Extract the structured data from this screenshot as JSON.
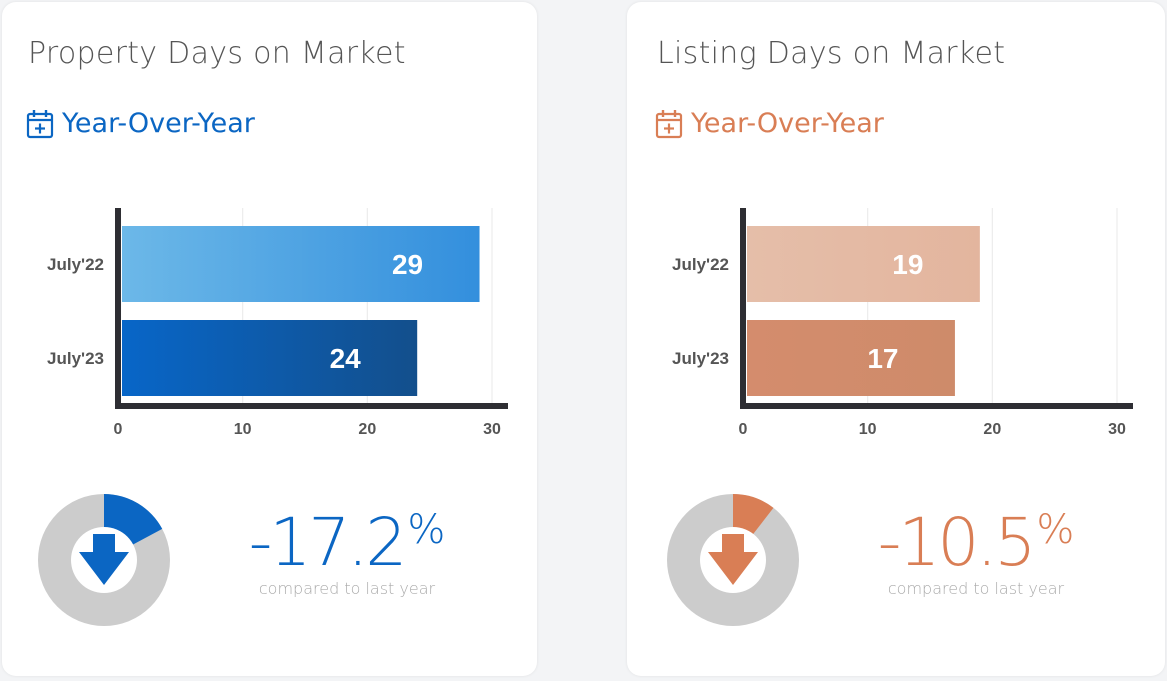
{
  "panels": [
    {
      "title": "Property Days on Market",
      "subtitle": "Year-Over-Year",
      "accent": "#0b66c3",
      "change_value": "-17.2",
      "change_unit": "%",
      "change_caption": "compared to last year",
      "change_fraction": 0.172,
      "icons": [
        "calendar-plus-icon",
        "arrow-down-icon"
      ],
      "bar_colors": [
        {
          "from": "#6cb8e8",
          "to": "#338fdd"
        },
        {
          "from": "#0866c8",
          "to": "#134f8c"
        }
      ]
    },
    {
      "title": "Listing Days on Market",
      "subtitle": "Year-Over-Year",
      "accent": "#d97e55",
      "change_value": "-10.5",
      "change_unit": "%",
      "change_caption": "compared to last year",
      "change_fraction": 0.105,
      "icons": [
        "calendar-plus-icon",
        "arrow-down-icon"
      ],
      "bar_colors": [
        {
          "from": "#e5bea9",
          "to": "#e3b59e"
        },
        {
          "from": "#d48c6d",
          "to": "#ce8b6a"
        }
      ]
    }
  ],
  "chart_data": [
    {
      "type": "bar",
      "orientation": "horizontal",
      "categories": [
        "July'22",
        "July'23"
      ],
      "values": [
        29,
        24
      ],
      "xlim": [
        0,
        30
      ],
      "xticks": [
        0,
        10,
        20,
        30
      ],
      "grid": true
    },
    {
      "type": "bar",
      "orientation": "horizontal",
      "categories": [
        "July'22",
        "July'23"
      ],
      "values": [
        19,
        17
      ],
      "xlim": [
        0,
        30
      ],
      "xticks": [
        0,
        10,
        20,
        30
      ],
      "grid": true
    }
  ]
}
